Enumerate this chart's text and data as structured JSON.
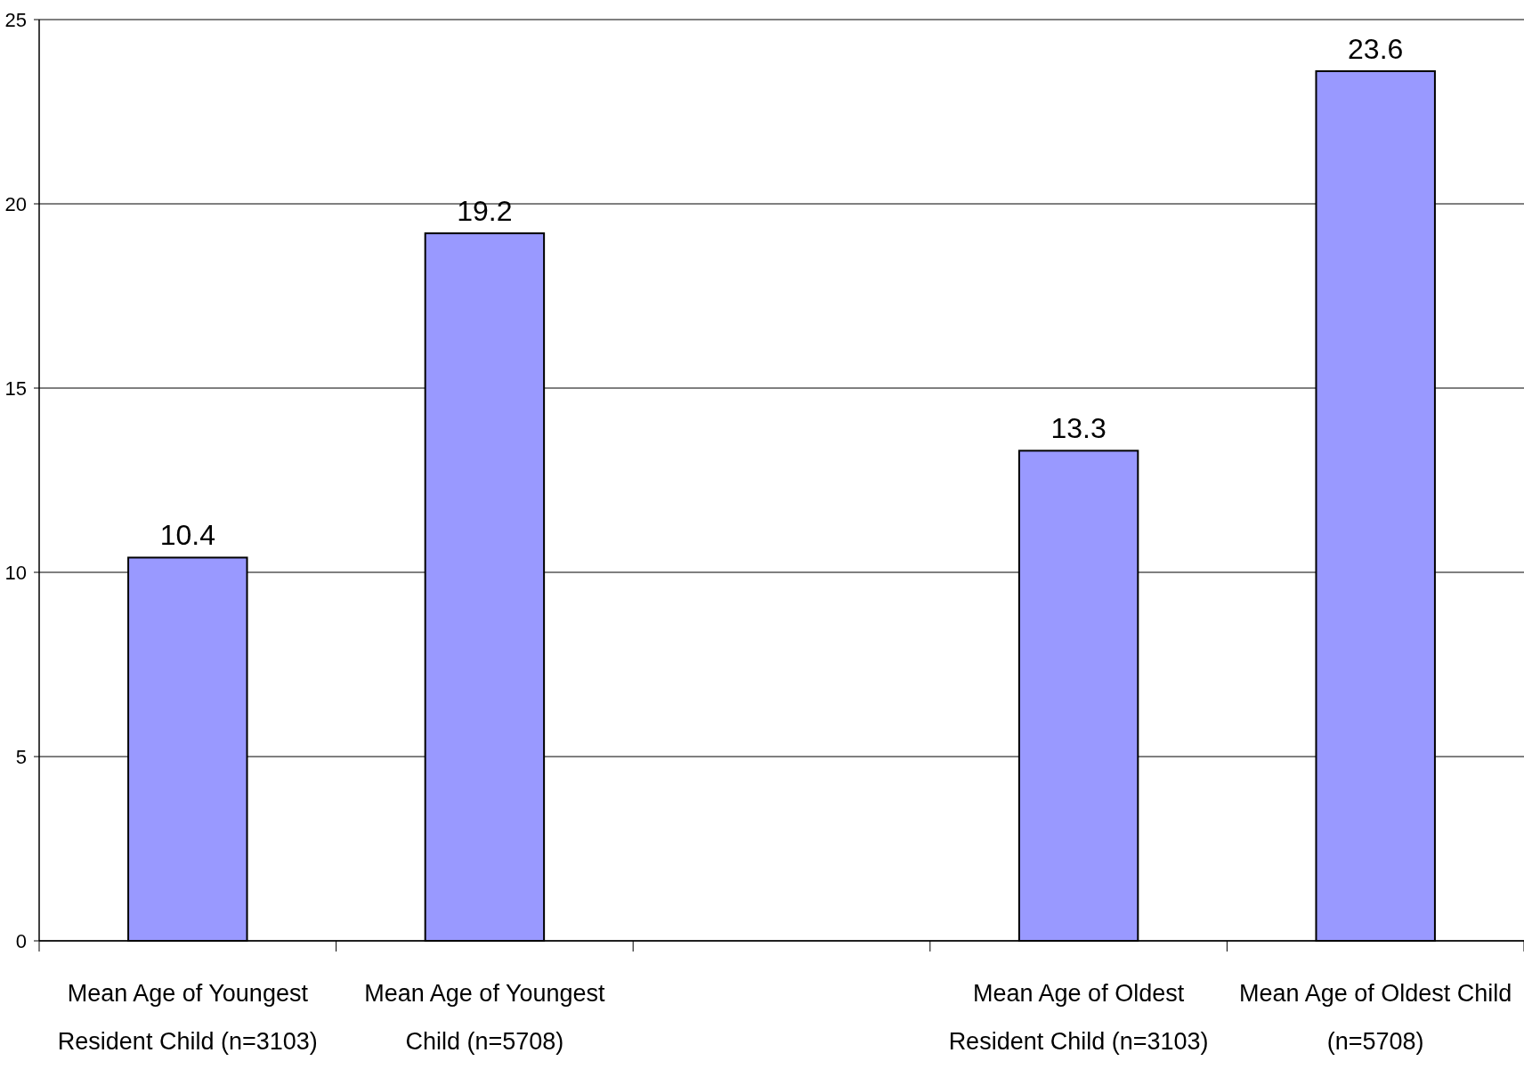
{
  "chart_data": {
    "type": "bar",
    "categories": [
      "Mean Age of Youngest Resident Child (n=3103)",
      "Mean Age of Youngest Child (n=5708)",
      null,
      "Mean Age of Oldest Resident Child (n=3103)",
      "Mean Age of Oldest Child (n=5708)"
    ],
    "values": [
      10.4,
      19.2,
      null,
      13.3,
      23.6
    ],
    "color": "#9999ff",
    "ylim": [
      0,
      25
    ],
    "yticks": [
      0,
      5,
      10,
      15,
      20,
      25
    ],
    "grid": "y",
    "data_labels": true
  }
}
